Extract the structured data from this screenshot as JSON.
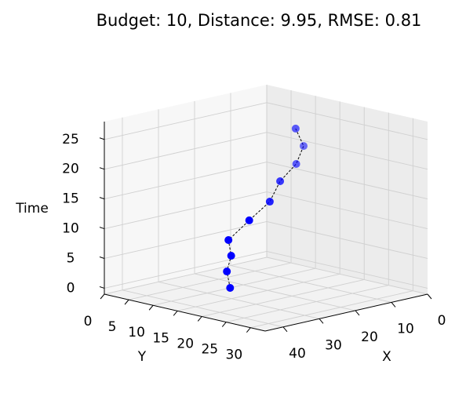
{
  "chart_data": {
    "type": "scatter3d",
    "title": "Budget: 10, Distance: 9.95, RMSE: 0.81",
    "xlabel": "X",
    "ylabel": "Y",
    "zlabel": "Time",
    "x": [
      27.3,
      28.6,
      29.3,
      31.0,
      27.0,
      23.6,
      20.6,
      18.7,
      17.6,
      19.0
    ],
    "y": [
      12.7,
      13.0,
      14.4,
      15.1,
      16.4,
      18.1,
      18.0,
      19.9,
      20.6,
      20.0
    ],
    "z": [
      0,
      3,
      6,
      9,
      12,
      15,
      18,
      21,
      24,
      27
    ],
    "xlim": [
      0,
      45
    ],
    "ylim": [
      0,
      33
    ],
    "zlim": [
      -1,
      28
    ],
    "xticks": [
      0,
      10,
      20,
      30,
      40
    ],
    "yticks": [
      0,
      5,
      10,
      15,
      20,
      25,
      30
    ],
    "zticks": [
      0,
      5,
      10,
      15,
      20,
      25
    ],
    "color": "#0000ff",
    "line_color": "#000000",
    "line_style": "dashed",
    "grid": true
  }
}
